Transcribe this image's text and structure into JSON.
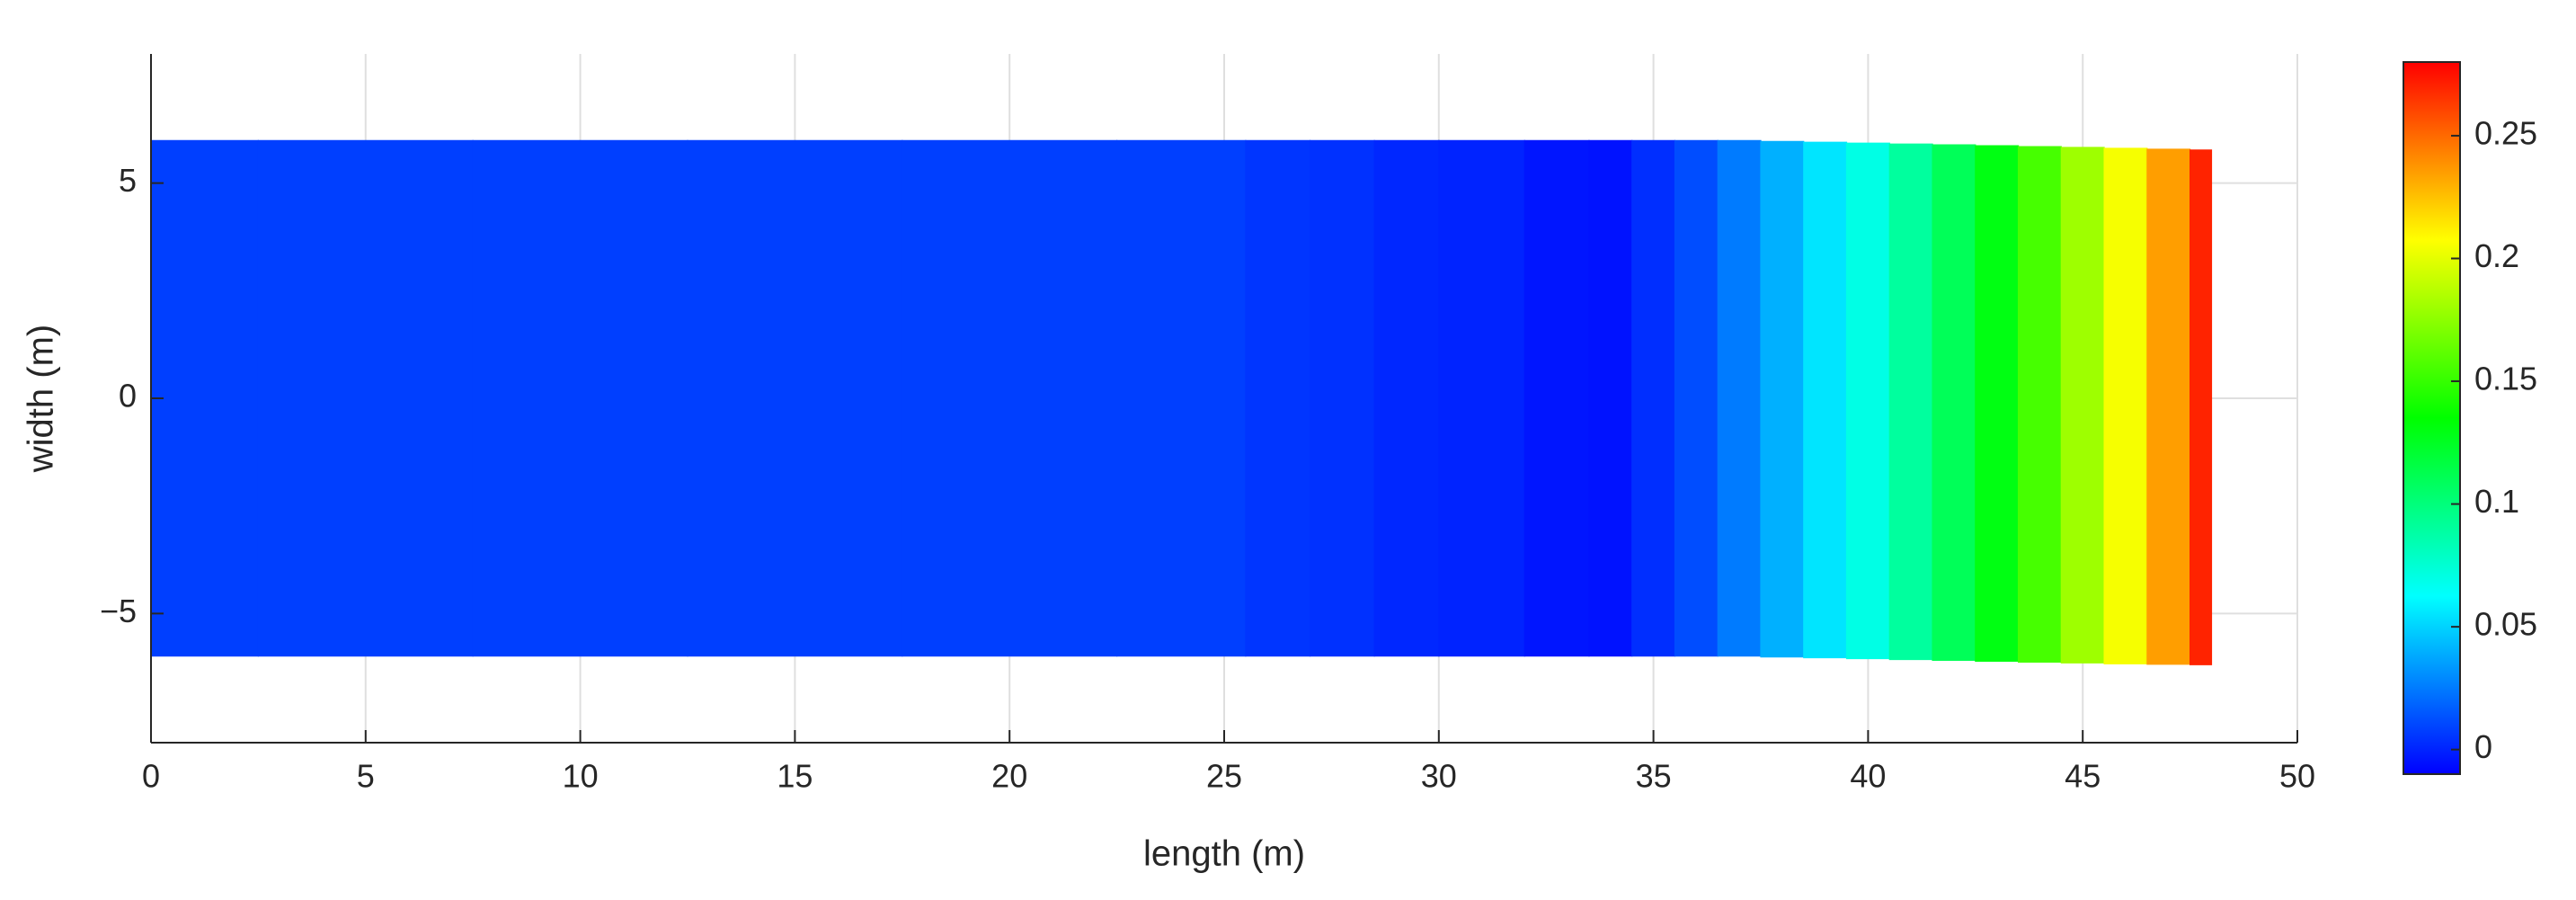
{
  "chart_data": {
    "type": "contour",
    "xlabel": "length (m)",
    "ylabel": "width (m)",
    "xlim": [
      0,
      50
    ],
    "ylim": [
      -8,
      8
    ],
    "xticks": [
      0,
      5,
      10,
      15,
      20,
      25,
      30,
      35,
      40,
      45,
      50
    ],
    "yticks": [
      {
        "value": -5,
        "label": "−5"
      },
      0,
      5
    ],
    "grid": true,
    "clim": [
      -0.01,
      0.28
    ],
    "cticks": [
      0,
      0.05,
      0.1,
      0.15,
      0.2,
      0.25
    ],
    "colormap": [
      "#0000ff",
      "#00ffff",
      "#00ff00",
      "#ffff00",
      "#ff0000"
    ],
    "x": [
      0,
      5,
      10,
      15,
      20,
      25,
      26,
      28,
      29,
      31,
      33,
      34,
      35,
      36,
      37,
      38,
      39,
      40,
      41,
      42,
      43,
      44,
      45,
      46,
      47,
      48
    ],
    "values": [
      0.008,
      0.008,
      0.008,
      0.008,
      0.008,
      0.008,
      0.005,
      0.004,
      0.001,
      0.0,
      -0.004,
      -0.005,
      0.003,
      0.012,
      0.025,
      0.04,
      0.055,
      0.07,
      0.09,
      0.11,
      0.13,
      0.155,
      0.18,
      0.205,
      0.235,
      0.27
    ],
    "upper_edge": [
      6,
      6,
      6,
      6,
      6,
      6,
      6,
      6,
      6,
      6,
      6,
      6,
      6,
      6,
      6,
      5.98,
      5.96,
      5.94,
      5.92,
      5.9,
      5.88,
      5.86,
      5.84,
      5.82,
      5.8,
      5.78
    ],
    "lower_edge": [
      -6,
      -6,
      -6,
      -6,
      -6,
      -6,
      -6,
      -6,
      -6,
      -6,
      -6,
      -6,
      -6,
      -6,
      -6,
      -6.02,
      -6.04,
      -6.06,
      -6.08,
      -6.1,
      -6.12,
      -6.14,
      -6.16,
      -6.18,
      -6.19,
      -6.2
    ]
  }
}
